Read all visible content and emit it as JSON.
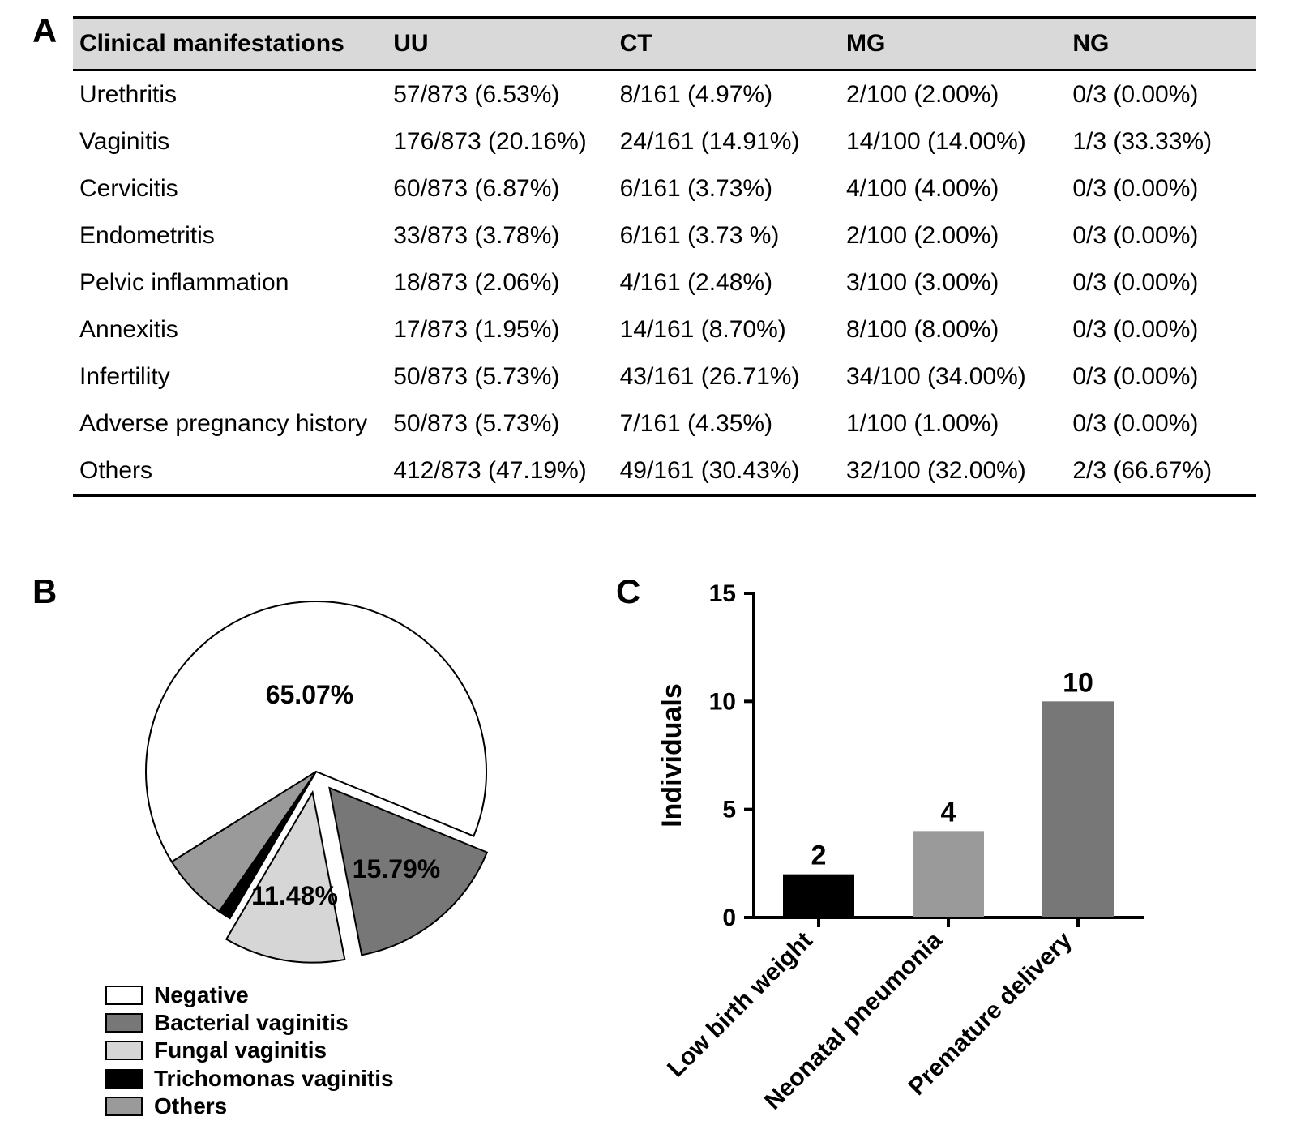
{
  "panelA": {
    "label": "A",
    "header_bg": "#d9d9d9",
    "columns": [
      "Clinical manifestations",
      "UU",
      "CT",
      "MG",
      "NG"
    ],
    "rows": [
      [
        "Urethritis",
        "57/873 (6.53%)",
        "8/161 (4.97%)",
        "2/100 (2.00%)",
        "0/3 (0.00%)"
      ],
      [
        "Vaginitis",
        "176/873 (20.16%)",
        "24/161 (14.91%)",
        "14/100 (14.00%)",
        "1/3 (33.33%)"
      ],
      [
        "Cervicitis",
        "60/873 (6.87%)",
        "6/161 (3.73%)",
        "4/100 (4.00%)",
        "0/3 (0.00%)"
      ],
      [
        "Endometritis",
        "33/873 (3.78%)",
        "6/161 (3.73 %)",
        "2/100 (2.00%)",
        "0/3 (0.00%)"
      ],
      [
        "Pelvic inflammation",
        "18/873 (2.06%)",
        "4/161 (2.48%)",
        "3/100 (3.00%)",
        "0/3 (0.00%)"
      ],
      [
        "Annexitis",
        "17/873 (1.95%)",
        "14/161 (8.70%)",
        "8/100 (8.00%)",
        "0/3 (0.00%)"
      ],
      [
        "Infertility",
        "50/873 (5.73%)",
        "43/161 (26.71%)",
        "34/100 (34.00%)",
        "0/3 (0.00%)"
      ],
      [
        "Adverse pregnancy history",
        "50/873 (5.73%)",
        "7/161 (4.35%)",
        "1/100 (1.00%)",
        "0/3 (0.00%)"
      ],
      [
        "Others",
        "412/873 (47.19%)",
        "49/161 (30.43%)",
        "32/100 (32.00%)",
        "2/3 (66.67%)"
      ]
    ]
  },
  "panelB": {
    "label": "B",
    "type": "pie",
    "slices": [
      {
        "label": "Negative",
        "value": 65.07,
        "color": "#ffffff",
        "display": "65.07%",
        "exploded": false
      },
      {
        "label": "Bacterial vaginitis",
        "value": 15.79,
        "color": "#777777",
        "display": "15.79%",
        "exploded": true
      },
      {
        "label": "Fungal vaginitis",
        "value": 11.48,
        "color": "#d6d6d6",
        "display": "11.48%",
        "exploded": true
      },
      {
        "label": "Trichomonas vaginitis",
        "value": 1.2,
        "color": "#000000",
        "display": "",
        "exploded": false
      },
      {
        "label": "Others",
        "value": 6.46,
        "color": "#9a9a9a",
        "display": "",
        "exploded": false
      }
    ],
    "stroke": "#000000",
    "stroke_width": 2,
    "radius": 210,
    "explode_offset": 26,
    "start_angle_deg": 148,
    "label_fontsize": 32,
    "legend": [
      {
        "text": "Negative",
        "color": "#ffffff"
      },
      {
        "text": "Bacterial vaginitis",
        "color": "#777777"
      },
      {
        "text": "Fungal vaginitis",
        "color": "#d6d6d6"
      },
      {
        "text": "Trichomonas vaginitis",
        "color": "#000000"
      },
      {
        "text": "Others",
        "color": "#9a9a9a"
      }
    ]
  },
  "panelC": {
    "label": "C",
    "type": "bar",
    "ylabel": "Individuals",
    "ylim": [
      0,
      15
    ],
    "ytick_step": 5,
    "categories": [
      "Low birth weight",
      "Neonatal pneumonia",
      "Premature delivery"
    ],
    "values": [
      2,
      4,
      10
    ],
    "value_labels": [
      "2",
      "4",
      "10"
    ],
    "bar_colors": [
      "#000000",
      "#9a9a9a",
      "#777777"
    ],
    "bar_width": 0.55,
    "axis_color": "#000000",
    "axis_width": 4,
    "tick_len": 12,
    "label_fontsize": 30,
    "tick_fontsize": 30,
    "value_fontsize": 34,
    "ylabel_fontsize": 34
  }
}
